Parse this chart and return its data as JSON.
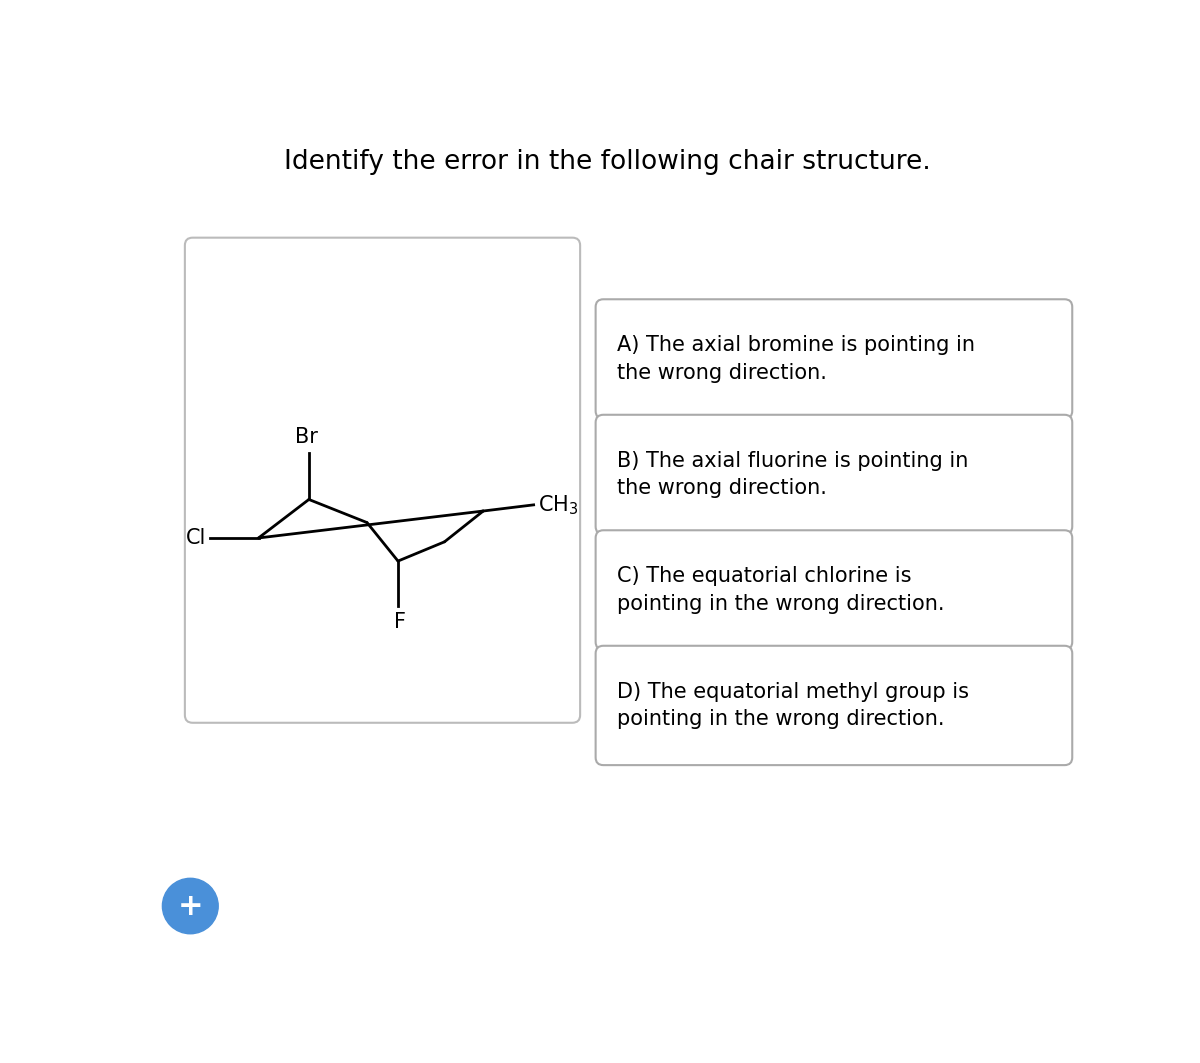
{
  "title": "Identify the error in the following chair structure.",
  "title_fontsize": 19,
  "bg_color": "#ffffff",
  "chair_bg_color": "#ffffff",
  "chair_box_color": "#bbbbbb",
  "options": [
    "A) The axial bromine is pointing in\nthe wrong direction.",
    "B) The axial fluorine is pointing in\nthe wrong direction.",
    "C) The equatorial chlorine is\npointing in the wrong direction.",
    "D) The equatorial methyl group is\npointing in the wrong direction."
  ],
  "option_fontsize": 15,
  "plus_button_color": "#4a90d9",
  "plus_symbol": "+"
}
